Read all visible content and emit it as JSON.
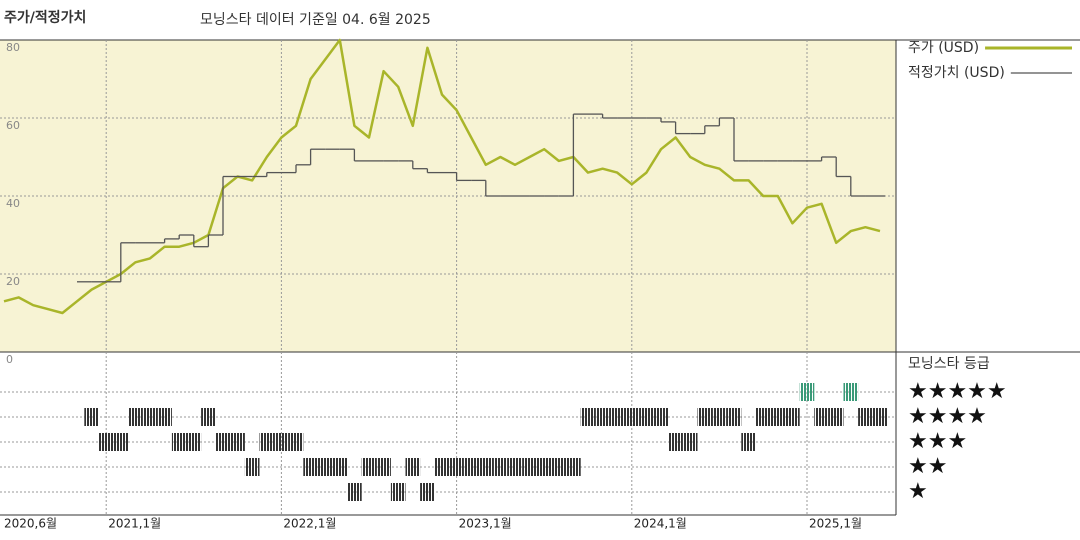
{
  "chart_data": {
    "type": "line",
    "title": "주가/적정가치",
    "subtitle": "모닝스타 데이터 기준일 04. 6월 2025",
    "categories": [
      "2020,6월",
      null,
      null,
      null,
      null,
      null,
      null,
      "2021,1월",
      null,
      null,
      null,
      null,
      null,
      null,
      null,
      null,
      null,
      null,
      null,
      "2022,1월",
      null,
      null,
      null,
      null,
      null,
      null,
      null,
      null,
      null,
      null,
      null,
      "2023,1월",
      null,
      null,
      null,
      null,
      null,
      null,
      null,
      null,
      null,
      null,
      null,
      "2024,1월",
      null,
      null,
      null,
      null,
      null,
      null,
      null,
      null,
      null,
      null,
      null,
      "2025,1월",
      null,
      null,
      null,
      null,
      null
    ],
    "ylim": [
      0,
      80
    ],
    "yticks": [
      0,
      20,
      40,
      60,
      80
    ],
    "grid": true,
    "series": [
      {
        "name": "주가 (USD)",
        "color": "#a9b52a",
        "values": [
          13,
          14,
          12,
          11,
          10,
          13,
          16,
          18,
          20,
          23,
          24,
          27,
          27,
          28,
          30,
          42,
          45,
          44,
          50,
          55,
          58,
          70,
          75,
          80,
          58,
          55,
          72,
          68,
          58,
          78,
          66,
          62,
          55,
          48,
          50,
          48,
          50,
          52,
          49,
          50,
          46,
          47,
          46,
          43,
          46,
          52,
          55,
          50,
          48,
          47,
          44,
          44,
          40,
          40,
          33,
          37,
          38,
          28,
          31,
          32,
          31
        ]
      },
      {
        "name": "적정가치 (USD)",
        "color": "#555555",
        "step": true,
        "values": [
          null,
          null,
          null,
          null,
          null,
          18,
          18,
          18,
          28,
          28,
          28,
          29,
          30,
          27,
          30,
          45,
          45,
          45,
          46,
          46,
          48,
          52,
          52,
          52,
          49,
          49,
          49,
          49,
          47,
          46,
          46,
          44,
          44,
          40,
          40,
          40,
          40,
          40,
          40,
          61,
          61,
          60,
          60,
          60,
          60,
          59,
          56,
          56,
          58,
          60,
          49,
          49,
          49,
          49,
          49,
          49,
          50,
          45,
          40,
          40,
          40
        ]
      }
    ],
    "ratings": {
      "title": "모닝스타 등급",
      "labels": [
        "★",
        "★★",
        "★★★",
        "★★★★",
        "★★★★★"
      ],
      "color": "#333333",
      "top_color": "#3a9a78",
      "values": [
        null,
        null,
        null,
        null,
        null,
        null,
        4,
        3,
        3,
        4,
        4,
        4,
        3,
        3,
        4,
        3,
        3,
        2,
        3,
        3,
        3,
        2,
        2,
        2,
        1,
        2,
        2,
        1,
        2,
        1,
        2,
        2,
        2,
        2,
        2,
        2,
        2,
        2,
        2,
        2,
        4,
        4,
        4,
        4,
        4,
        4,
        3,
        3,
        4,
        4,
        4,
        3,
        4,
        4,
        4,
        5,
        4,
        4,
        5,
        4,
        4
      ]
    }
  }
}
